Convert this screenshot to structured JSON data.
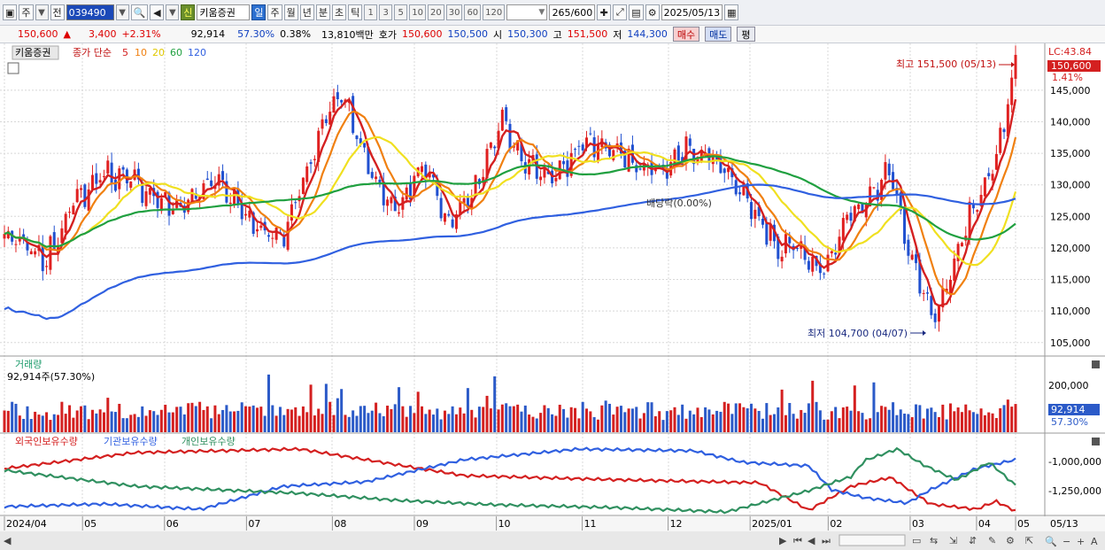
{
  "toolbar": {
    "market": "주",
    "prev": "전",
    "code": "039490",
    "sin": "신",
    "name": "키움증권",
    "periods": [
      "일",
      "주",
      "월",
      "년",
      "분",
      "초",
      "틱"
    ],
    "nums": [
      "1",
      "3",
      "5",
      "10",
      "20",
      "30",
      "60",
      "120"
    ],
    "count": "265",
    "count_max": "/600",
    "date": "2025/05/13"
  },
  "quote": {
    "price": "150,600",
    "change": "3,400",
    "pct": "+2.31%",
    "volume": "92,914",
    "ratio": "57.30%",
    "turnover": "0.38%",
    "amount": "13,810백만",
    "ask_label": "호가",
    "ask": "150,600",
    "bid": "150,500",
    "open_label": "시",
    "open": "150,300",
    "high_label": "고",
    "high": "151,500",
    "low_label": "저",
    "low": "144,300",
    "buy": "매수",
    "sell": "매도",
    "avg": "평"
  },
  "price_panel": {
    "stock": "키움증권",
    "ma_label": "종가 단순",
    "ma_periods": [
      "5",
      "10",
      "20",
      "60",
      "120"
    ],
    "ma_colors": [
      "#d42020",
      "#f08010",
      "#f0e020",
      "#20a040",
      "#3060e0"
    ],
    "lc": "LC:43.84",
    "last_tag": "150,600",
    "last_pct": "1.41%",
    "high_note": "최고 151,500 (05/13)",
    "low_note": "최저 104,700 (04/07)",
    "dividend": "배당락(0.00%)",
    "y_ticks": [
      "145,000",
      "140,000",
      "135,000",
      "130,000",
      "125,000",
      "120,000",
      "115,000",
      "110,000",
      "105,000"
    ]
  },
  "volume_panel": {
    "title": "거래량",
    "info": "92,914주(57.30%)",
    "y_tick": "200,000",
    "last_tag": "92,914",
    "last_pct": "57.30%"
  },
  "holder_panel": {
    "legend": [
      "외국인보유수량",
      "기관보유수량",
      "개인보유수량"
    ],
    "colors": [
      "#d42020",
      "#3060e0",
      "#309060"
    ],
    "y_ticks": [
      "-1,000,000",
      "-1,250,000"
    ]
  },
  "x_axis": {
    "labels": [
      "2024/04",
      "05",
      "06",
      "07",
      "08",
      "09",
      "10",
      "11",
      "12",
      "2025/01",
      "02",
      "03",
      "04",
      "05"
    ],
    "right_label": "05/13"
  },
  "chart_data": {
    "type": "candlestick",
    "y_range": [
      103000,
      152000
    ],
    "last_close": 150600,
    "period_high": 151500,
    "period_low": 104700,
    "volume_scale_max": 230000
  }
}
